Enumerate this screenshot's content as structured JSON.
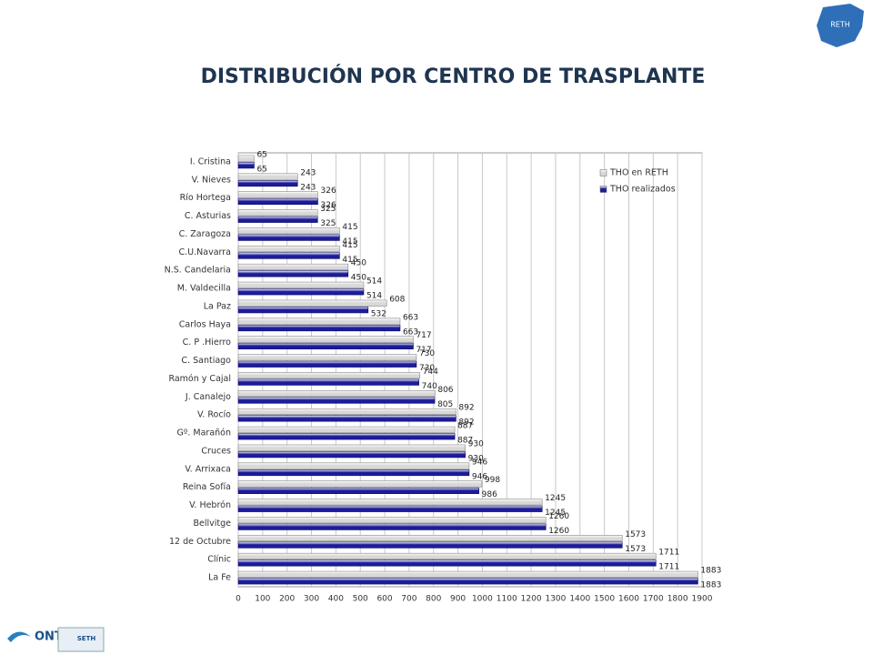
{
  "logos": {
    "map": "RETH",
    "left": "ONT",
    "right": "SETH"
  },
  "chart_data": {
    "type": "bar",
    "orientation": "horizontal",
    "title": "DISTRIBUCIÓN POR CENTRO DE TRASPLANTE",
    "categories": [
      "I. Cristina",
      "V. Nieves",
      "Río Hortega",
      "C. Asturias",
      "C. Zaragoza",
      "C.U.Navarra",
      "N.S. Candelaria",
      "M. Valdecilla",
      "La Paz",
      "Carlos Haya",
      "C. P .Hierro",
      "C. Santiago",
      "Ramón y Cajal",
      "J. Canalejo",
      "V. Rocío",
      "Gº. Marañón",
      "Cruces",
      "V. Arrixaca",
      "Reina Sofía",
      "V. Hebrón",
      "Bellvitge",
      "12 de Octubre",
      "Clínic",
      "La Fe"
    ],
    "series": [
      {
        "name": "THO en RETH",
        "color": "#d8d8d8",
        "values": [
          65,
          243,
          326,
          325,
          415,
          415,
          450,
          514,
          608,
          663,
          717,
          730,
          744,
          806,
          892,
          887,
          930,
          946,
          998,
          1245,
          1260,
          1573,
          1711,
          1883
        ]
      },
      {
        "name": "THO realizados",
        "color": "#1c1c9a",
        "values": [
          65,
          243,
          326,
          325,
          415,
          415,
          450,
          514,
          532,
          663,
          717,
          730,
          740,
          805,
          892,
          887,
          930,
          946,
          986,
          1245,
          1260,
          1573,
          1711,
          1883
        ]
      }
    ],
    "xlim": [
      0,
      1900
    ],
    "xticks": [
      0,
      100,
      200,
      300,
      400,
      500,
      600,
      700,
      800,
      900,
      1000,
      1100,
      1200,
      1300,
      1400,
      1500,
      1600,
      1700,
      1800,
      1900
    ],
    "grid": true,
    "legend": "top-right"
  }
}
